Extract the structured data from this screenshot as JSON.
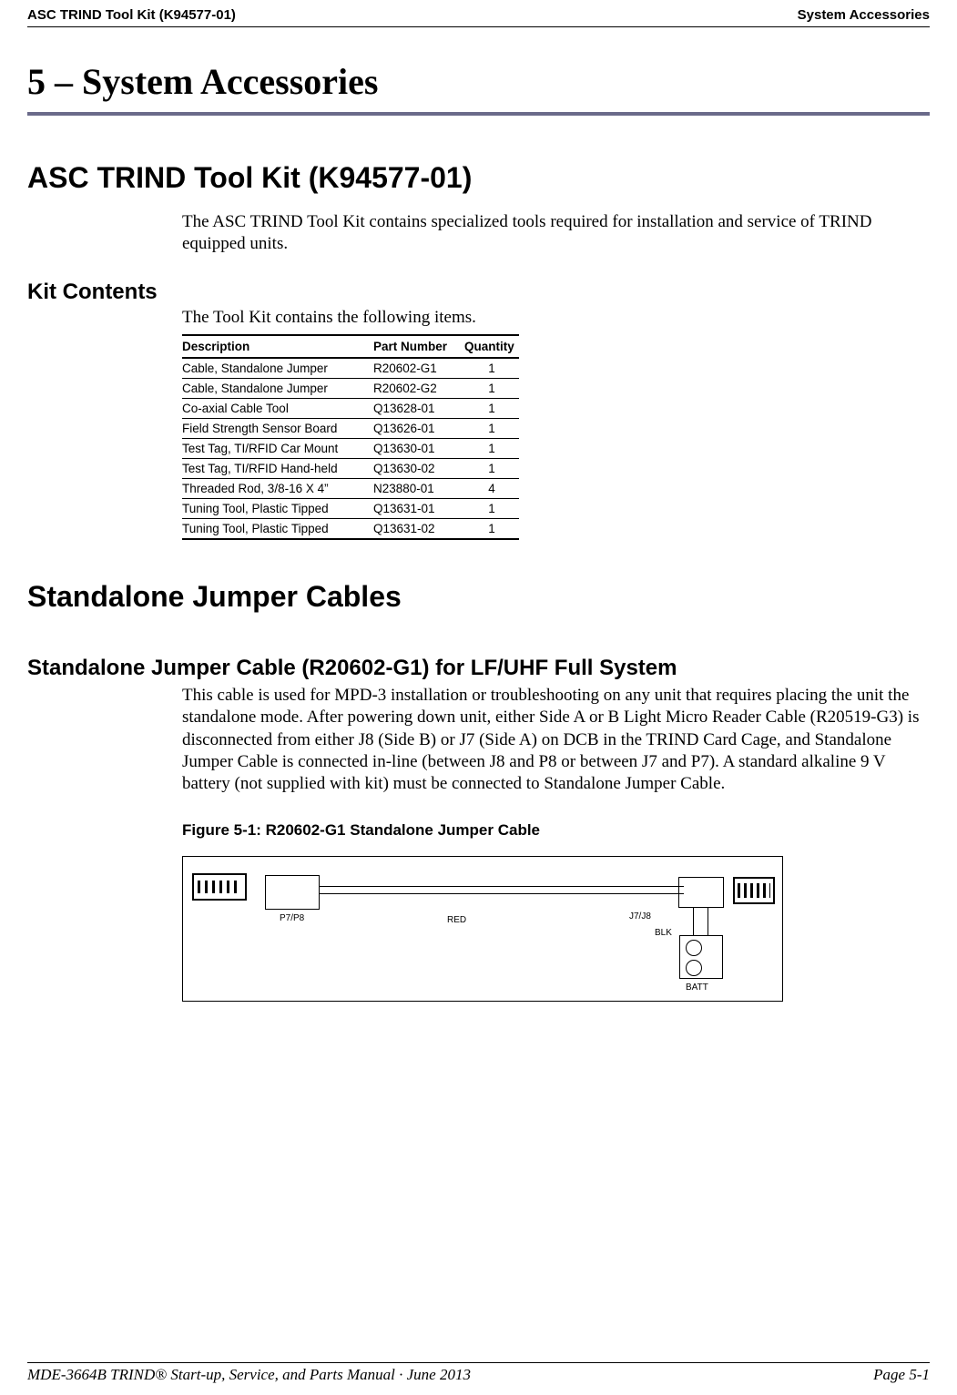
{
  "header": {
    "left": "ASC TRIND Tool Kit (K94577-01)",
    "right": "System Accessories"
  },
  "chapter_title": "5 – System Accessories",
  "section_toolkit": {
    "heading": "ASC TRIND Tool Kit (K94577-01)",
    "intro": "The ASC TRIND Tool Kit contains specialized tools required for installation and service of TRIND equipped units."
  },
  "kit_contents": {
    "heading": "Kit Contents",
    "intro": "The Tool Kit contains the following items.",
    "columns": [
      "Description",
      "Part Number",
      "Quantity"
    ],
    "rows": [
      [
        "Cable, Standalone Jumper",
        "R20602-G1",
        "1"
      ],
      [
        "Cable, Standalone Jumper",
        "R20602-G2",
        "1"
      ],
      [
        "Co-axial Cable Tool",
        "Q13628-01",
        "1"
      ],
      [
        "Field Strength Sensor Board",
        "Q13626-01",
        "1"
      ],
      [
        "Test Tag, TI/RFID Car Mount",
        "Q13630-01",
        "1"
      ],
      [
        "Test Tag, TI/RFID Hand-held",
        "Q13630-02",
        "1"
      ],
      [
        "Threaded Rod, 3/8-16 X 4”",
        "N23880-01",
        "4"
      ],
      [
        "Tuning Tool, Plastic Tipped",
        "Q13631-01",
        "1"
      ],
      [
        "Tuning Tool, Plastic Tipped",
        "Q13631-02",
        "1"
      ]
    ]
  },
  "section_jumper": {
    "heading": "Standalone Jumper Cables",
    "sub_heading": "Standalone Jumper Cable (R20602-G1) for LF/UHF Full System",
    "body": "This cable is used for MPD-3 installation or troubleshooting on any unit that requires placing the unit the standalone mode. After powering down unit, either Side A or B Light Micro Reader Cable (R20519-G3) is disconnected from either J8 (Side B) or J7 (Side A) on DCB in the TRIND Card Cage, and Standalone Jumper Cable is connected in-line (between J8 and P8 or between J7 and P7). A standard alkaline 9 V battery (not supplied with kit) must be connected to Standalone Jumper Cable.",
    "figure_caption": "Figure 5-1: R20602-G1 Standalone Jumper Cable",
    "figure_labels": {
      "p7p8": "P7/P8",
      "red": "RED",
      "j7j8": "J7/J8",
      "blk": "BLK",
      "batt": "BATT"
    }
  },
  "footer": {
    "left": "MDE-3664B TRIND® Start-up, Service, and Parts Manual · June 2013",
    "right": "Page 5-1"
  }
}
